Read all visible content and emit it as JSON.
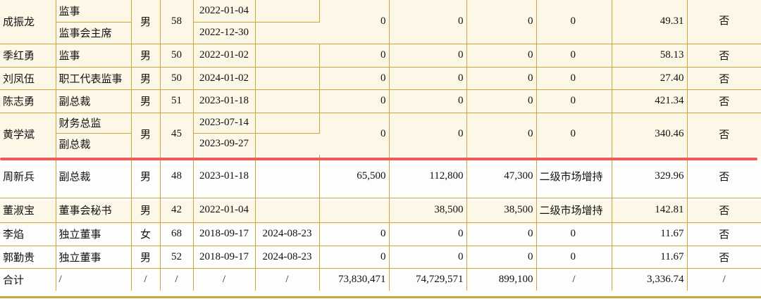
{
  "rows": [
    {
      "name": "成振龙",
      "title": "监事",
      "title2": "监事会主席",
      "gender": "男",
      "age": "58",
      "start": "2022-01-04",
      "start2": "2022-12-30",
      "end": "",
      "begin_shares": "0",
      "end_shares": "0",
      "change": "0",
      "reason": "0",
      "pay": "49.31",
      "related": "否"
    },
    {
      "name": "季红勇",
      "title": "监事",
      "gender": "男",
      "age": "50",
      "start": "2022-01-02",
      "end": "",
      "begin_shares": "0",
      "end_shares": "0",
      "change": "0",
      "reason": "0",
      "pay": "58.13",
      "related": "否"
    },
    {
      "name": "刘凤伍",
      "title": "职工代表监事",
      "gender": "男",
      "age": "50",
      "start": "2024-01-02",
      "end": "",
      "begin_shares": "0",
      "end_shares": "0",
      "change": "0",
      "reason": "0",
      "pay": "27.40",
      "related": "否"
    },
    {
      "name": "陈志勇",
      "title": "副总裁",
      "gender": "男",
      "age": "51",
      "start": "2023-01-18",
      "end": "",
      "begin_shares": "0",
      "end_shares": "0",
      "change": "0",
      "reason": "0",
      "pay": "421.34",
      "related": "否"
    },
    {
      "name": "黄学斌",
      "title": "财务总监",
      "title2": "副总裁",
      "gender": "男",
      "age": "45",
      "start": "2023-07-14",
      "start2": "2023-09-27",
      "end": "",
      "begin_shares": "0",
      "end_shares": "0",
      "change": "0",
      "reason": "0",
      "pay": "340.46",
      "related": "否"
    },
    {
      "name": "周新兵",
      "title": "副总裁",
      "gender": "男",
      "age": "48",
      "start": "2023-01-18",
      "end": "",
      "begin_shares": "65,500",
      "end_shares": "112,800",
      "change": "47,300",
      "reason": "二级市场增持",
      "pay": "329.96",
      "related": "否"
    },
    {
      "name": "董淑宝",
      "title": "董事会秘书",
      "gender": "男",
      "age": "42",
      "start": "2022-01-04",
      "end": "",
      "begin_shares": "",
      "end_shares": "38,500",
      "change": "38,500",
      "reason": "二级市场增持",
      "pay": "142.81",
      "related": "否"
    },
    {
      "name": "李焰",
      "title": "独立董事",
      "gender": "女",
      "age": "68",
      "start": "2018-09-17",
      "end": "2024-08-23",
      "begin_shares": "0",
      "end_shares": "0",
      "change": "0",
      "reason": "0",
      "pay": "11.67",
      "related": "否"
    },
    {
      "name": "郭勤贵",
      "title": "独立董事",
      "gender": "男",
      "age": "52",
      "start": "2018-09-17",
      "end": "2024-08-23",
      "begin_shares": "0",
      "end_shares": "0",
      "change": "0",
      "reason": "0",
      "pay": "11.67",
      "related": "否"
    }
  ],
  "total": {
    "name": "合计",
    "title": "/",
    "gender": "/",
    "age": "/",
    "start": "/",
    "end": "/",
    "begin_shares": "73,830,471",
    "end_shares": "74,729,571",
    "change": "899,100",
    "reason": "/",
    "pay": "3,336.74",
    "related": "/"
  }
}
